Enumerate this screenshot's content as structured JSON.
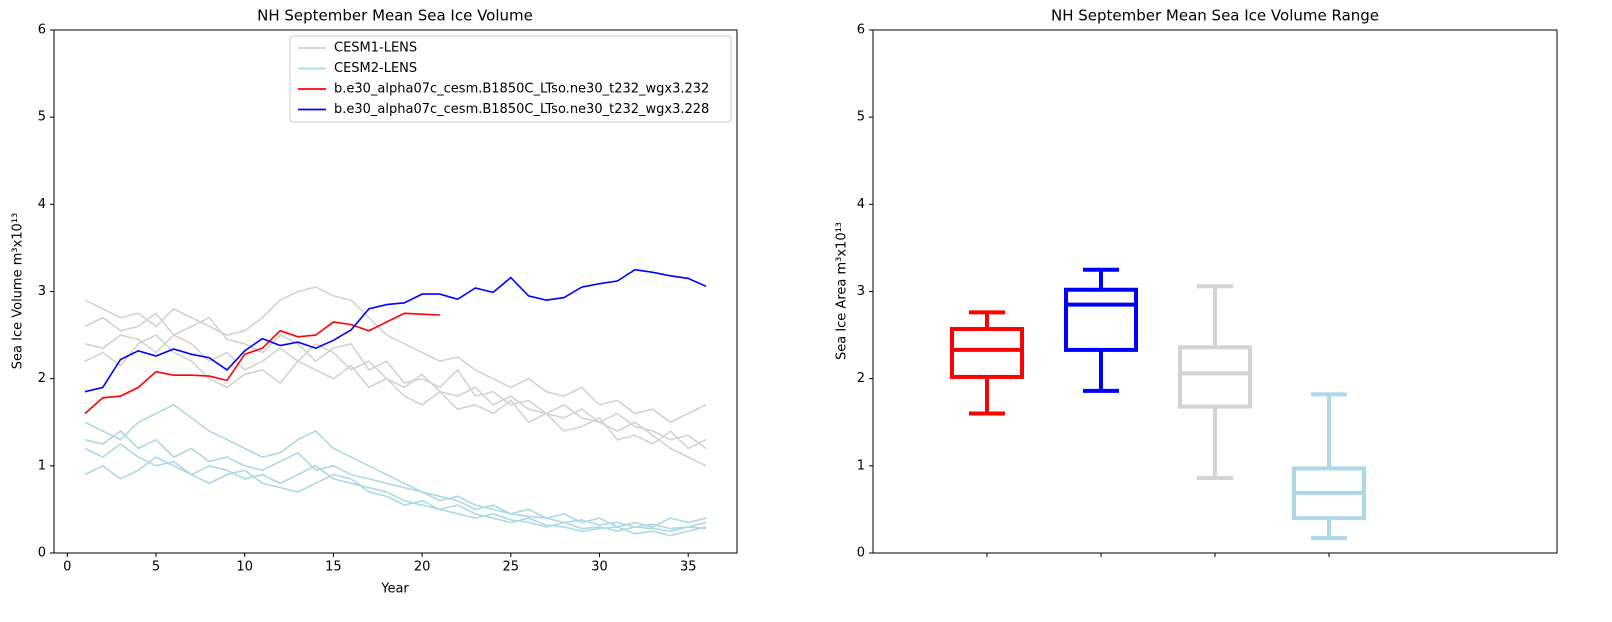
{
  "chart_data": [
    {
      "type": "line",
      "title": "NH September Mean Sea Ice Volume",
      "xlabel": "Year",
      "ylabel": "Sea Ice Volume m³x10¹³",
      "x": [
        1,
        2,
        3,
        4,
        5,
        6,
        7,
        8,
        9,
        10,
        11,
        12,
        13,
        14,
        15,
        16,
        17,
        18,
        19,
        20,
        21,
        22,
        23,
        24,
        25,
        26,
        27,
        28,
        29,
        30,
        31,
        32,
        33,
        34,
        35,
        36
      ],
      "xlim": [
        -0.75,
        37.75
      ],
      "xticks": [
        0,
        5,
        10,
        15,
        20,
        25,
        30,
        35
      ],
      "ylim": [
        0,
        6
      ],
      "yticks": [
        0,
        1,
        2,
        3,
        4,
        5,
        6
      ],
      "legend": "upper right",
      "series": [
        {
          "name": "CESM1-LENS",
          "color": "lightgray",
          "members": [
            [
              2.9,
              2.8,
              2.7,
              2.75,
              2.6,
              2.8,
              2.7,
              2.6,
              2.5,
              2.55,
              2.7,
              2.9,
              3.0,
              3.05,
              2.95,
              2.9,
              2.7,
              2.5,
              2.4,
              2.3,
              2.2,
              2.25,
              2.1,
              2.0,
              1.9,
              2.0,
              1.85,
              1.8,
              1.9,
              1.7,
              1.75,
              1.6,
              1.65,
              1.5,
              1.6,
              1.7
            ],
            [
              2.4,
              2.35,
              2.5,
              2.45,
              2.3,
              2.5,
              2.4,
              2.2,
              2.3,
              2.1,
              2.2,
              2.35,
              2.2,
              2.4,
              2.3,
              2.1,
              2.2,
              2.0,
              1.9,
              2.05,
              1.85,
              1.8,
              1.9,
              1.7,
              1.8,
              1.65,
              1.6,
              1.7,
              1.55,
              1.5,
              1.6,
              1.45,
              1.4,
              1.3,
              1.35,
              1.2
            ],
            [
              2.6,
              2.7,
              2.55,
              2.6,
              2.75,
              2.5,
              2.6,
              2.7,
              2.45,
              2.4,
              2.3,
              2.5,
              2.4,
              2.2,
              2.35,
              2.4,
              2.1,
              2.2,
              1.95,
              2.0,
              1.9,
              2.1,
              1.8,
              1.85,
              1.7,
              1.75,
              1.6,
              1.55,
              1.65,
              1.5,
              1.4,
              1.5,
              1.35,
              1.2,
              1.1,
              1.0
            ],
            [
              2.2,
              2.3,
              2.15,
              2.4,
              2.5,
              2.3,
              2.2,
              2.0,
              1.9,
              2.05,
              2.1,
              1.95,
              2.2,
              2.1,
              2.0,
              2.15,
              1.9,
              2.0,
              1.8,
              1.7,
              1.85,
              1.65,
              1.7,
              1.6,
              1.75,
              1.5,
              1.6,
              1.4,
              1.45,
              1.55,
              1.3,
              1.35,
              1.25,
              1.4,
              1.2,
              1.3
            ]
          ]
        },
        {
          "name": "CESM2-LENS",
          "color": "lightblue",
          "members": [
            [
              1.5,
              1.4,
              1.3,
              1.5,
              1.6,
              1.7,
              1.55,
              1.4,
              1.3,
              1.2,
              1.1,
              1.15,
              1.3,
              1.4,
              1.2,
              1.1,
              1.0,
              0.9,
              0.8,
              0.7,
              0.6,
              0.65,
              0.55,
              0.5,
              0.45,
              0.5,
              0.4,
              0.45,
              0.35,
              0.4,
              0.3,
              0.35,
              0.3,
              0.4,
              0.35,
              0.4
            ],
            [
              1.2,
              1.1,
              1.25,
              1.1,
              1.0,
              1.05,
              0.9,
              1.0,
              0.95,
              0.85,
              0.9,
              0.8,
              0.9,
              1.0,
              0.85,
              0.8,
              0.75,
              0.7,
              0.6,
              0.55,
              0.5,
              0.45,
              0.4,
              0.45,
              0.38,
              0.35,
              0.3,
              0.35,
              0.28,
              0.3,
              0.25,
              0.3,
              0.28,
              0.25,
              0.3,
              0.28
            ],
            [
              0.9,
              1.0,
              0.85,
              0.95,
              1.1,
              1.0,
              0.9,
              0.8,
              0.9,
              0.95,
              0.8,
              0.75,
              0.7,
              0.8,
              0.9,
              0.85,
              0.7,
              0.65,
              0.55,
              0.6,
              0.5,
              0.55,
              0.45,
              0.4,
              0.35,
              0.4,
              0.32,
              0.3,
              0.25,
              0.28,
              0.3,
              0.22,
              0.25,
              0.2,
              0.25,
              0.3
            ],
            [
              1.3,
              1.25,
              1.4,
              1.2,
              1.3,
              1.1,
              1.2,
              1.05,
              1.1,
              1.0,
              0.95,
              1.05,
              1.15,
              0.95,
              1.0,
              0.9,
              0.85,
              0.8,
              0.75,
              0.7,
              0.65,
              0.6,
              0.5,
              0.55,
              0.45,
              0.42,
              0.4,
              0.35,
              0.38,
              0.32,
              0.35,
              0.3,
              0.33,
              0.28,
              0.3,
              0.35
            ]
          ]
        },
        {
          "name": "b.e30_alpha07c_cesm.B1850C_LTso.ne30_t232_wgx3.232",
          "color": "red",
          "values": [
            1.6,
            1.78,
            1.8,
            1.9,
            2.08,
            2.04,
            2.04,
            2.03,
            1.98,
            2.28,
            2.35,
            2.55,
            2.48,
            2.5,
            2.65,
            2.62,
            2.55,
            2.65,
            2.75,
            2.74,
            2.73,
            null,
            null,
            null,
            null,
            null,
            null,
            null,
            null,
            null,
            null,
            null,
            null,
            null,
            null,
            null
          ]
        },
        {
          "name": "b.e30_alpha07c_cesm.B1850C_LTso.ne30_t232_wgx3.228",
          "color": "blue",
          "values": [
            1.85,
            1.9,
            2.22,
            2.32,
            2.26,
            2.34,
            2.28,
            2.24,
            2.1,
            2.32,
            2.46,
            2.38,
            2.42,
            2.35,
            2.44,
            2.56,
            2.8,
            2.85,
            2.87,
            2.97,
            2.97,
            2.91,
            3.04,
            2.99,
            3.16,
            2.95,
            2.9,
            2.93,
            3.05,
            3.09,
            3.12,
            3.25,
            3.22,
            3.18,
            3.15,
            3.06
          ]
        }
      ]
    },
    {
      "type": "box",
      "title": "NH September Mean Sea Ice Volume Range",
      "ylabel": "Sea Ice Area m³x10¹³",
      "xlim": [
        0,
        6
      ],
      "positions": [
        1,
        2,
        3,
        4
      ],
      "ylim": [
        0,
        6
      ],
      "yticks": [
        0,
        1,
        2,
        3,
        4,
        5,
        6
      ],
      "boxes": [
        {
          "color": "red",
          "whislo": 1.6,
          "q1": 2.02,
          "med": 2.33,
          "q3": 2.57,
          "whishi": 2.76
        },
        {
          "color": "blue",
          "whislo": 1.86,
          "q1": 2.33,
          "med": 2.85,
          "q3": 3.02,
          "whishi": 3.25
        },
        {
          "color": "lightgray",
          "whislo": 0.86,
          "q1": 1.68,
          "med": 2.06,
          "q3": 2.36,
          "whishi": 3.06
        },
        {
          "color": "lightblue",
          "whislo": 0.17,
          "q1": 0.4,
          "med": 0.69,
          "q3": 0.97,
          "whishi": 1.82
        }
      ]
    }
  ]
}
